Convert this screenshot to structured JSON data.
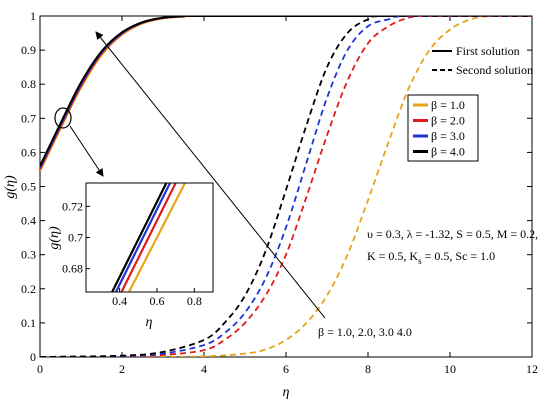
{
  "chart_data": [
    {
      "type": "line",
      "xlabel": "η",
      "ylabel": "g(η)",
      "xlim": [
        0,
        12
      ],
      "ylim": [
        0,
        1
      ],
      "x_ticks": [
        "0",
        "2",
        "4",
        "6",
        "8",
        "10",
        "12"
      ],
      "y_ticks": [
        "0",
        "0.1",
        "0.2",
        "0.3",
        "0.4",
        "0.5",
        "0.6",
        "0.7",
        "0.8",
        "0.9",
        "1"
      ],
      "grid": false,
      "legend_styles": {
        "placement": "top-right",
        "entries": [
          {
            "label": "First solution",
            "style": "solid"
          },
          {
            "label": "Second solution",
            "style": "dashed"
          }
        ]
      },
      "legend_params": {
        "placement": "right",
        "entries": [
          {
            "label": "β = 1.0",
            "color": "#e8a317"
          },
          {
            "label": "β = 2.0",
            "color": "#e31a1c"
          },
          {
            "label": "β = 3.0",
            "color": "#1f33d6"
          },
          {
            "label": "β = 4.0",
            "color": "#000000"
          }
        ]
      },
      "parameters_text_line1": "υ = 0.3, λ = -1.32, S = 0.5, M = 0.2,",
      "parameters_text_line2_a": "K = 0.5, K",
      "parameters_text_line2_sub": "s",
      "parameters_text_line2_b": " = 0.5, Sc = 1.0",
      "arrow_annotation": "β = 1.0, 2.0, 3.0 4.0",
      "series": [
        {
          "solution": "first",
          "beta": 1.0,
          "color": "#e8a317",
          "x": [
            0,
            0.5,
            1,
            1.5,
            2,
            2.5,
            3,
            3.5,
            4,
            12
          ],
          "y": [
            0.545,
            0.67,
            0.79,
            0.885,
            0.945,
            0.978,
            0.993,
            0.998,
            1.0,
            1.0
          ]
        },
        {
          "solution": "first",
          "beta": 2.0,
          "color": "#e31a1c",
          "x": [
            0,
            0.5,
            1,
            1.5,
            2,
            2.5,
            3,
            3.5,
            4,
            12
          ],
          "y": [
            0.55,
            0.675,
            0.795,
            0.89,
            0.948,
            0.98,
            0.994,
            0.999,
            1.0,
            1.0
          ]
        },
        {
          "solution": "first",
          "beta": 3.0,
          "color": "#1f33d6",
          "x": [
            0,
            0.5,
            1,
            1.5,
            2,
            2.5,
            3,
            3.5,
            4,
            12
          ],
          "y": [
            0.555,
            0.68,
            0.8,
            0.893,
            0.95,
            0.981,
            0.995,
            0.999,
            1.0,
            1.0
          ]
        },
        {
          "solution": "first",
          "beta": 4.0,
          "color": "#000000",
          "x": [
            0,
            0.5,
            1,
            1.5,
            2,
            2.5,
            3,
            3.5,
            4,
            12
          ],
          "y": [
            0.56,
            0.685,
            0.805,
            0.896,
            0.952,
            0.982,
            0.995,
            0.999,
            1.0,
            1.0
          ]
        },
        {
          "solution": "second",
          "beta": 1.0,
          "color": "#e8a317",
          "x": [
            0,
            2,
            4,
            5,
            5.5,
            6,
            6.5,
            7,
            7.5,
            8,
            8.5,
            9,
            9.5,
            10,
            10.5,
            11,
            12
          ],
          "y": [
            0,
            0,
            0.002,
            0.01,
            0.022,
            0.05,
            0.1,
            0.18,
            0.3,
            0.46,
            0.63,
            0.79,
            0.9,
            0.96,
            0.99,
            1.0,
            1.0
          ]
        },
        {
          "solution": "second",
          "beta": 2.0,
          "color": "#e31a1c",
          "x": [
            0,
            2,
            3,
            4,
            4.5,
            5,
            5.5,
            6,
            6.5,
            7,
            7.5,
            8,
            8.5,
            9,
            9.5,
            12
          ],
          "y": [
            0,
            0.002,
            0.006,
            0.02,
            0.05,
            0.1,
            0.18,
            0.3,
            0.47,
            0.65,
            0.81,
            0.92,
            0.97,
            0.995,
            1.0,
            1.0
          ]
        },
        {
          "solution": "second",
          "beta": 3.0,
          "color": "#1f33d6",
          "x": [
            0,
            2,
            3,
            4,
            4.5,
            5,
            5.5,
            6,
            6.5,
            7,
            7.5,
            8,
            8.5,
            9,
            12
          ],
          "y": [
            0,
            0.003,
            0.01,
            0.035,
            0.07,
            0.13,
            0.23,
            0.38,
            0.57,
            0.76,
            0.9,
            0.97,
            0.99,
            1.0,
            1.0
          ]
        },
        {
          "solution": "second",
          "beta": 4.0,
          "color": "#000000",
          "x": [
            0,
            2,
            3,
            4,
            4.5,
            5,
            5.5,
            6,
            6.5,
            7,
            7.5,
            8,
            8.5,
            12
          ],
          "y": [
            0,
            0.004,
            0.015,
            0.05,
            0.1,
            0.18,
            0.31,
            0.49,
            0.68,
            0.85,
            0.95,
            0.99,
            1.0,
            1.0
          ]
        }
      ]
    },
    {
      "type": "line",
      "role": "inset",
      "xlabel": "η",
      "ylabel": "g(η)",
      "xlim": [
        0.22,
        0.9
      ],
      "ylim": [
        0.665,
        0.735
      ],
      "x_ticks": [
        "0.4",
        "0.6",
        "0.8"
      ],
      "y_ticks": [
        "0.68",
        "0.7",
        "0.72"
      ],
      "series": [
        {
          "beta": 1.0,
          "color": "#e8a317",
          "x": [
            0.45,
            0.75
          ],
          "y": [
            0.665,
            0.735
          ]
        },
        {
          "beta": 2.0,
          "color": "#e31a1c",
          "x": [
            0.41,
            0.7
          ],
          "y": [
            0.665,
            0.735
          ]
        },
        {
          "beta": 3.0,
          "color": "#1f33d6",
          "x": [
            0.38,
            0.67
          ],
          "y": [
            0.665,
            0.735
          ]
        },
        {
          "beta": 4.0,
          "color": "#000000",
          "x": [
            0.36,
            0.65
          ],
          "y": [
            0.665,
            0.735
          ]
        }
      ]
    }
  ]
}
